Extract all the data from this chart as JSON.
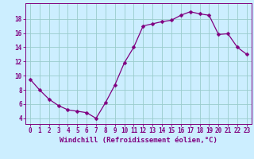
{
  "x": [
    0,
    1,
    2,
    3,
    4,
    5,
    6,
    7,
    8,
    9,
    10,
    11,
    12,
    13,
    14,
    15,
    16,
    17,
    18,
    19,
    20,
    21,
    22,
    23
  ],
  "y": [
    9.5,
    8.0,
    6.7,
    5.8,
    5.2,
    5.0,
    4.8,
    4.0,
    6.2,
    8.7,
    11.8,
    14.0,
    17.0,
    17.3,
    17.6,
    17.8,
    18.5,
    19.0,
    18.7,
    18.5,
    15.8,
    15.9,
    14.0,
    13.0
  ],
  "line_color": "#800080",
  "marker": "D",
  "marker_size": 2.5,
  "bg_color": "#cceeff",
  "grid_color": "#99cccc",
  "xlabel": "Windchill (Refroidissement éolien,°C)",
  "xlabel_color": "#800080",
  "ylabel_ticks": [
    4,
    6,
    8,
    10,
    12,
    14,
    16,
    18
  ],
  "xtick_labels": [
    "0",
    "1",
    "2",
    "3",
    "4",
    "5",
    "6",
    "7",
    "8",
    "9",
    "10",
    "11",
    "12",
    "13",
    "14",
    "15",
    "16",
    "17",
    "18",
    "19",
    "20",
    "21",
    "22",
    "23"
  ],
  "ylim": [
    3.2,
    20.2
  ],
  "xlim": [
    -0.5,
    23.5
  ],
  "tick_color": "#800080",
  "axis_color": "#800080",
  "font_size_xlabel": 6.5,
  "font_size_ticks": 5.5,
  "linewidth": 0.9
}
